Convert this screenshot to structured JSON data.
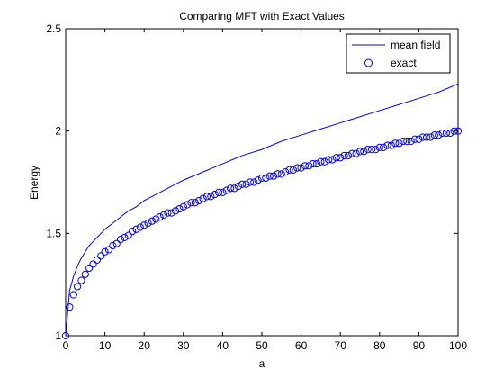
{
  "chart_data": {
    "type": "line",
    "title": "Comparing MFT with Exact Values",
    "xlabel": "a",
    "ylabel": "Energy",
    "xlim": [
      0,
      100
    ],
    "ylim": [
      1,
      2.5
    ],
    "xticks": [
      0,
      10,
      20,
      30,
      40,
      50,
      60,
      70,
      80,
      90,
      100
    ],
    "xtick_labels": [
      "0",
      "10",
      "20",
      "30",
      "40",
      "50",
      "60",
      "70",
      "80",
      "90",
      "100"
    ],
    "yticks": [
      1,
      1.5,
      2,
      2.5
    ],
    "ytick_labels": [
      "1",
      "1.5",
      "2",
      "2.5"
    ],
    "grid": false,
    "legend_position": "top-right",
    "series": [
      {
        "name": "mean field",
        "style": "line",
        "color": "#0000ff",
        "x": [
          0,
          1,
          2,
          3,
          4,
          5,
          6,
          7,
          8,
          9,
          10,
          12,
          14,
          16,
          18,
          20,
          25,
          30,
          35,
          40,
          45,
          50,
          55,
          60,
          65,
          70,
          75,
          80,
          85,
          90,
          95,
          100
        ],
        "y": [
          1.0,
          1.22,
          1.29,
          1.34,
          1.38,
          1.41,
          1.44,
          1.46,
          1.48,
          1.5,
          1.52,
          1.55,
          1.58,
          1.61,
          1.63,
          1.66,
          1.71,
          1.76,
          1.8,
          1.84,
          1.88,
          1.91,
          1.95,
          1.98,
          2.01,
          2.04,
          2.07,
          2.1,
          2.13,
          2.16,
          2.19,
          2.23
        ]
      },
      {
        "name": "exact",
        "style": "markers",
        "marker": "circle",
        "color": "#0000ff",
        "x": [
          0,
          1,
          2,
          3,
          4,
          5,
          6,
          7,
          8,
          9,
          10,
          11,
          12,
          13,
          14,
          15,
          16,
          17,
          18,
          19,
          20,
          21,
          22,
          23,
          24,
          25,
          26,
          27,
          28,
          29,
          30,
          31,
          32,
          33,
          34,
          35,
          36,
          37,
          38,
          39,
          40,
          41,
          42,
          43,
          44,
          45,
          46,
          47,
          48,
          49,
          50,
          51,
          52,
          53,
          54,
          55,
          56,
          57,
          58,
          59,
          60,
          61,
          62,
          63,
          64,
          65,
          66,
          67,
          68,
          69,
          70,
          71,
          72,
          73,
          74,
          75,
          76,
          77,
          78,
          79,
          80,
          81,
          82,
          83,
          84,
          85,
          86,
          87,
          88,
          89,
          90,
          91,
          92,
          93,
          94,
          95,
          96,
          97,
          98,
          99,
          100
        ],
        "y": [
          1.0,
          1.14,
          1.2,
          1.24,
          1.27,
          1.3,
          1.33,
          1.35,
          1.37,
          1.39,
          1.41,
          1.42,
          1.44,
          1.45,
          1.47,
          1.48,
          1.49,
          1.51,
          1.52,
          1.53,
          1.54,
          1.55,
          1.56,
          1.57,
          1.58,
          1.59,
          1.6,
          1.6,
          1.61,
          1.62,
          1.63,
          1.64,
          1.65,
          1.65,
          1.66,
          1.67,
          1.68,
          1.68,
          1.69,
          1.7,
          1.7,
          1.71,
          1.72,
          1.72,
          1.73,
          1.74,
          1.74,
          1.75,
          1.75,
          1.76,
          1.77,
          1.77,
          1.78,
          1.78,
          1.79,
          1.79,
          1.8,
          1.81,
          1.81,
          1.82,
          1.82,
          1.83,
          1.83,
          1.84,
          1.84,
          1.85,
          1.85,
          1.86,
          1.86,
          1.87,
          1.87,
          1.88,
          1.88,
          1.89,
          1.89,
          1.9,
          1.9,
          1.91,
          1.91,
          1.91,
          1.92,
          1.92,
          1.93,
          1.93,
          1.94,
          1.94,
          1.95,
          1.95,
          1.95,
          1.96,
          1.96,
          1.97,
          1.97,
          1.97,
          1.98,
          1.98,
          1.99,
          1.99,
          1.99,
          2.0,
          2.0
        ]
      }
    ]
  }
}
